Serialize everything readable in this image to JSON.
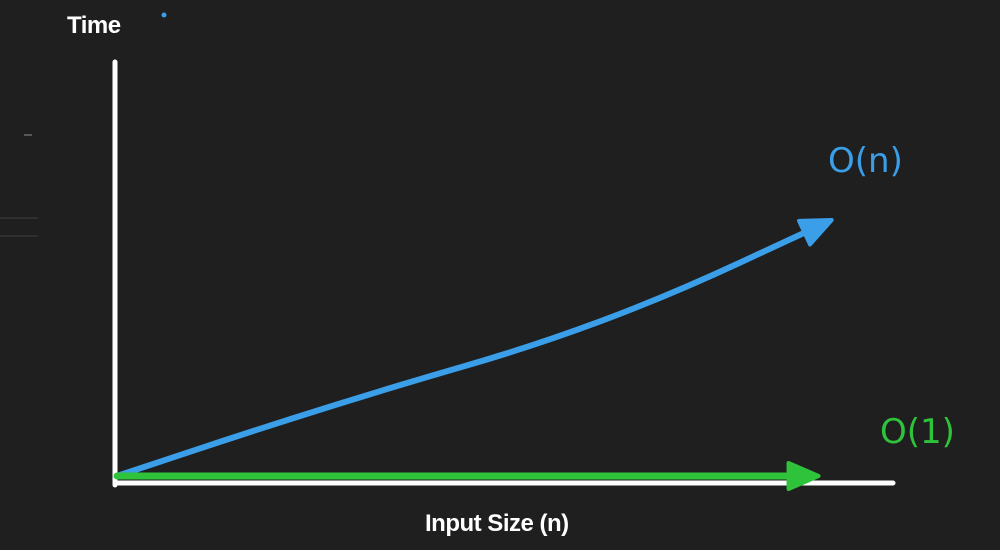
{
  "colors": {
    "background": "#1f1f1f",
    "axis": "#ffffff",
    "text": "#ffffff",
    "blue": "#3a9ee8",
    "green": "#2fc23b",
    "faint_ui": "#3a3a3a"
  },
  "chart_data": {
    "type": "line",
    "title": "",
    "xlabel": "Input Size (n)",
    "ylabel": "Time",
    "grid": false,
    "legend": "none",
    "xlim": [
      0,
      10
    ],
    "ylim": [
      0,
      10
    ],
    "series": [
      {
        "name": "O(n)",
        "color": "#3a9ee8",
        "points": [
          [
            0.0,
            0.0
          ],
          [
            1.9,
            1.7
          ],
          [
            3.8,
            3.3
          ],
          [
            5.6,
            4.7
          ],
          [
            7.4,
            6.5
          ],
          [
            9.4,
            9.0
          ]
        ]
      },
      {
        "name": "O(1)",
        "color": "#2fc23b",
        "points": [
          [
            0.0,
            0.0
          ],
          [
            3.0,
            0.0
          ],
          [
            6.0,
            0.0
          ],
          [
            9.2,
            0.0
          ]
        ]
      }
    ]
  }
}
